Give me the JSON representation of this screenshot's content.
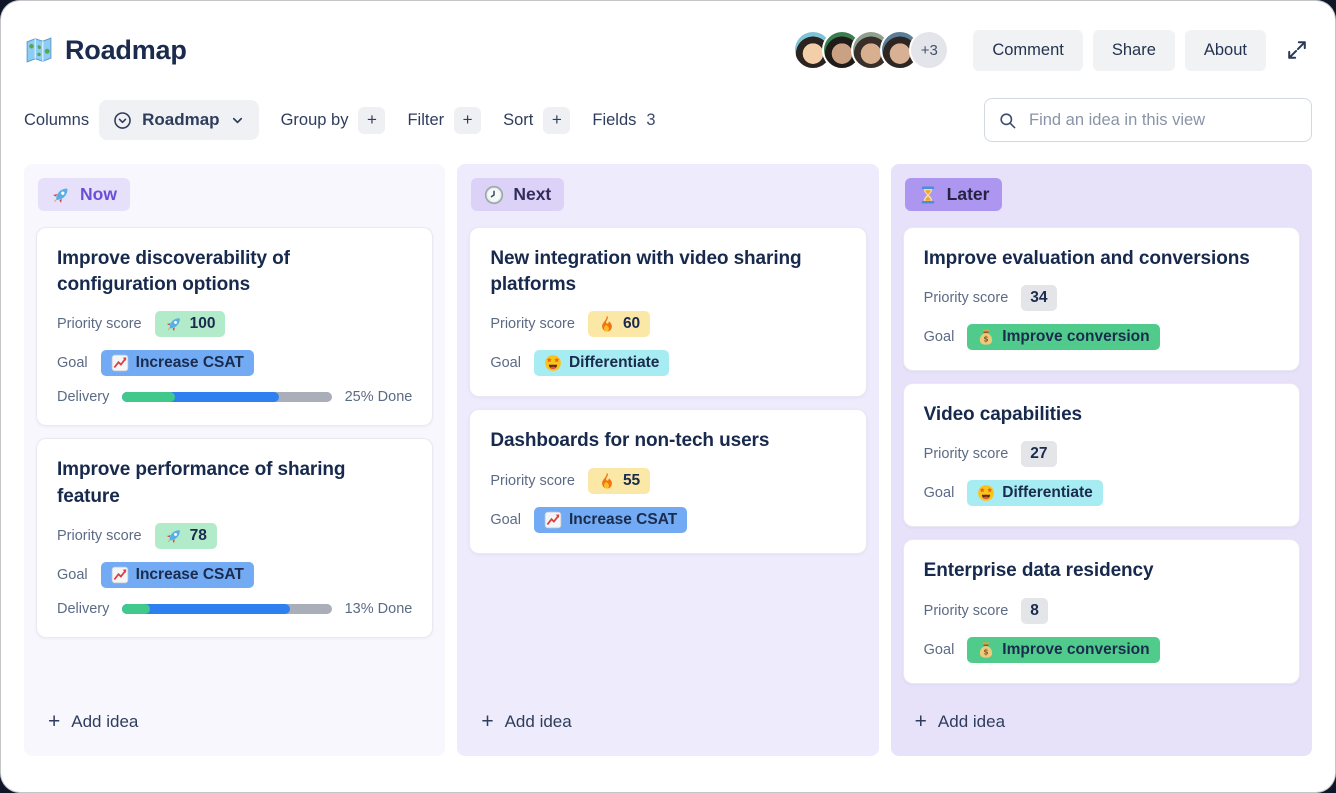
{
  "window": {
    "title": "Roadmap",
    "title_icon": "map-icon"
  },
  "header": {
    "avatars": [
      "avatar-1",
      "avatar-2",
      "avatar-3",
      "avatar-4"
    ],
    "avatar_overflow": "+3",
    "buttons": [
      "Comment",
      "Share",
      "About"
    ],
    "expand_icon": "expand-icon"
  },
  "toolbar": {
    "columns_label": "Columns",
    "view_selector": {
      "value": "Roadmap",
      "icons": [
        "circle-chevron-down-icon",
        "chevron-down-icon"
      ]
    },
    "group_by_label": "Group by",
    "filter_label": "Filter",
    "sort_label": "Sort",
    "fields_label": "Fields",
    "fields_count": "3",
    "plus": "+",
    "search_placeholder": "Find an idea in this view",
    "search_icon": "search-icon"
  },
  "labels": {
    "priority_score": "Priority score",
    "goal": "Goal",
    "delivery": "Delivery"
  },
  "colors": {
    "accent_purple": "#6b4ed8",
    "progress_done_green": "#41c98c",
    "progress_inprogress_blue": "#2e80f0",
    "progress_track_gray": "#a9aeb9",
    "priority_green": "#b2ebc9",
    "priority_yellow": "#fce8a6",
    "priority_gray": "#e3e5e9",
    "goal_blue": "#72abf4",
    "goal_cyan": "#a7ecf2",
    "goal_green": "#50cb8c"
  },
  "board": {
    "add_idea_label": "Add idea",
    "columns": [
      {
        "name": "Now",
        "icon": "rocket",
        "tone": "now",
        "cards": [
          {
            "title": "Improve discoverability of configuration options",
            "priority": {
              "icon": "rocket",
              "value": "100",
              "tone": "green"
            },
            "goal": {
              "icon": "chart-increasing",
              "label": "Increase CSAT",
              "tone": "blue"
            },
            "delivery": {
              "label": "25% Done",
              "green_pct": 25,
              "blue_pct": 50
            }
          },
          {
            "title": "Improve performance of sharing feature",
            "priority": {
              "icon": "rocket",
              "value": "78",
              "tone": "green"
            },
            "goal": {
              "icon": "chart-increasing",
              "label": "Increase CSAT",
              "tone": "blue"
            },
            "delivery": {
              "label": "13% Done",
              "green_pct": 13,
              "blue_pct": 67
            }
          }
        ]
      },
      {
        "name": "Next",
        "icon": "clock",
        "tone": "next",
        "cards": [
          {
            "title": "New integration with video sharing platforms",
            "priority": {
              "icon": "fire",
              "value": "60",
              "tone": "yellow"
            },
            "goal": {
              "icon": "star-struck",
              "label": "Differentiate",
              "tone": "cyan"
            }
          },
          {
            "title": "Dashboards for non-tech users",
            "priority": {
              "icon": "fire",
              "value": "55",
              "tone": "yellow"
            },
            "goal": {
              "icon": "chart-increasing",
              "label": "Increase CSAT",
              "tone": "blue"
            }
          }
        ]
      },
      {
        "name": "Later",
        "icon": "hourglass",
        "tone": "later",
        "cards": [
          {
            "title": "Improve evaluation and conversions",
            "priority": {
              "value": "34",
              "tone": "gray"
            },
            "goal": {
              "icon": "money-bag",
              "label": "Improve conversion",
              "tone": "green-strong"
            }
          },
          {
            "title": "Video capabilities",
            "priority": {
              "value": "27",
              "tone": "gray"
            },
            "goal": {
              "icon": "star-struck",
              "label": "Differentiate",
              "tone": "cyan"
            }
          },
          {
            "title": "Enterprise data residency",
            "priority": {
              "value": "8",
              "tone": "gray"
            },
            "goal": {
              "icon": "money-bag",
              "label": "Improve conversion",
              "tone": "green-strong"
            }
          }
        ]
      }
    ]
  }
}
